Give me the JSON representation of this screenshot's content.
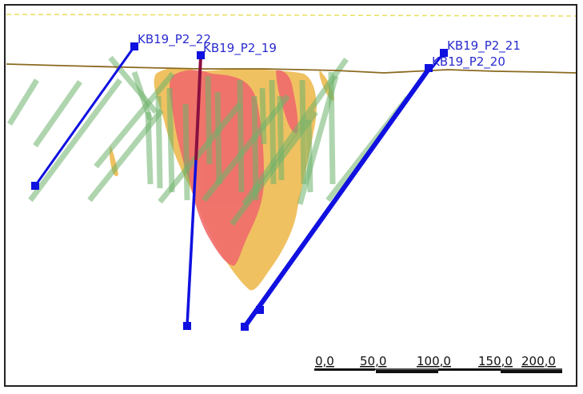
{
  "drillholes": [
    {
      "id": "KB19_P2_22"
    },
    {
      "id": "KB19_P2_19"
    },
    {
      "id": "KB19_P2_21"
    },
    {
      "id": "KB19_P2_20"
    }
  ],
  "scale_bar": {
    "labels": [
      "0,0",
      "50,0",
      "100,0",
      "150,0",
      "200,0"
    ]
  },
  "colors": {
    "drillhole": "#1010e0",
    "label": "#2a2ad0",
    "topography": "#8a6a20",
    "grade_high": "#ef6b6b",
    "grade_low": "#efbe58",
    "historic_holes": "#6db36b",
    "frame_border": "#222222",
    "top_dashed": "#e8e060"
  }
}
